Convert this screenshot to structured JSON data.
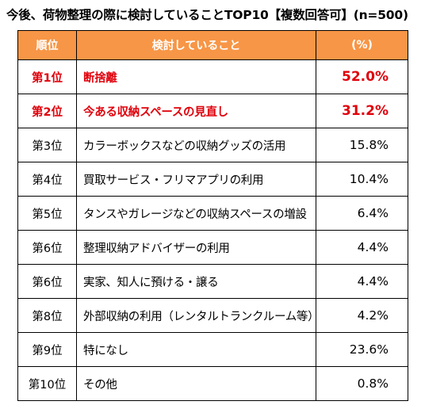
{
  "title": "今後、荷物整理の際に検討していることTOP10【複数回答可】(n=500)",
  "colors": {
    "header_bg": "#f79646",
    "header_text": "#ffffff",
    "highlight": "#e0000a"
  },
  "chart_data": {
    "type": "table",
    "title": "今後、荷物整理の際に検討していることTOP10【複数回答可】(n=500)",
    "columns": [
      "順位",
      "検討していること",
      "(%)"
    ],
    "rows": [
      {
        "rank": "第1位",
        "item": "断捨離",
        "pct": "52.0%",
        "highlight": true
      },
      {
        "rank": "第2位",
        "item": "今ある収納スペースの見直し",
        "pct": "31.2%",
        "highlight": true
      },
      {
        "rank": "第3位",
        "item": "カラーボックスなどの収納グッズの活用",
        "pct": "15.8%",
        "highlight": false
      },
      {
        "rank": "第4位",
        "item": "買取サービス・フリマアプリの利用",
        "pct": "10.4%",
        "highlight": false
      },
      {
        "rank": "第5位",
        "item": "タンスやガレージなどの収納スペースの増設",
        "pct": "6.4%",
        "highlight": false
      },
      {
        "rank": "第6位",
        "item": "整理収納アドバイザーの利用",
        "pct": "4.4%",
        "highlight": false
      },
      {
        "rank": "第6位",
        "item": "実家、知人に預ける・譲る",
        "pct": "4.4%",
        "highlight": false
      },
      {
        "rank": "第8位",
        "item": "外部収納の利用（レンタルトランクルーム等）",
        "pct": "4.2%",
        "highlight": false
      },
      {
        "rank": "第9位",
        "item": "特になし",
        "pct": "23.6%",
        "highlight": false
      },
      {
        "rank": "第10位",
        "item": "その他",
        "pct": "0.8%",
        "highlight": false
      }
    ]
  }
}
